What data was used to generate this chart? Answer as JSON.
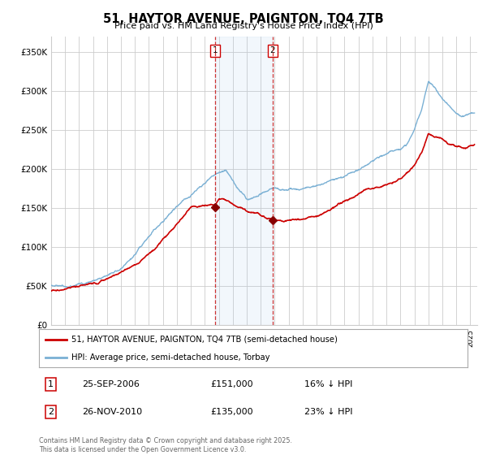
{
  "title": "51, HAYTOR AVENUE, PAIGNTON, TQ4 7TB",
  "subtitle": "Price paid vs. HM Land Registry's House Price Index (HPI)",
  "ylabel_ticks": [
    "£0",
    "£50K",
    "£100K",
    "£150K",
    "£200K",
    "£250K",
    "£300K",
    "£350K"
  ],
  "ylim": [
    0,
    370000
  ],
  "xlim_start": 1995.0,
  "xlim_end": 2025.5,
  "legend_line1": "51, HAYTOR AVENUE, PAIGNTON, TQ4 7TB (semi-detached house)",
  "legend_line2": "HPI: Average price, semi-detached house, Torbay",
  "marker1_date": 2006.73,
  "marker1_price": 151000,
  "marker2_date": 2010.85,
  "marker2_price": 135000,
  "footer": "Contains HM Land Registry data © Crown copyright and database right 2025.\nThis data is licensed under the Open Government Licence v3.0.",
  "line_red": "#cc0000",
  "line_blue": "#7ab0d4",
  "marker_box_color": "#cc0000",
  "dashed_color": "#cc3333",
  "background_color": "#ffffff",
  "grid_color": "#cccccc"
}
